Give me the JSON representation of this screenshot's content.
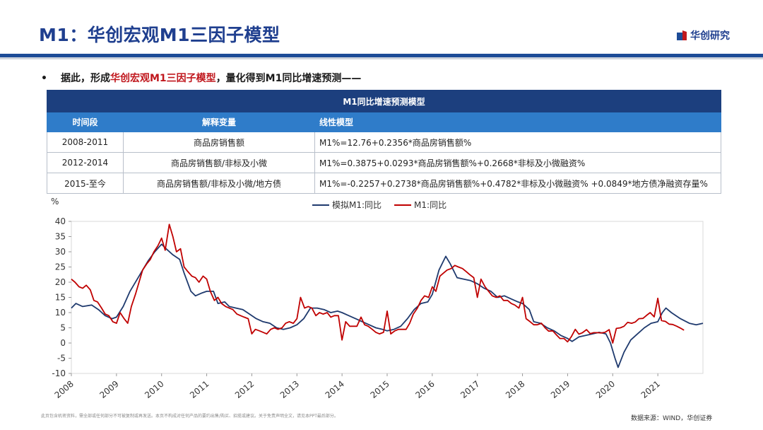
{
  "header": {
    "title": "M1：华创宏观M1三因子模型",
    "brand": "华创研究"
  },
  "bullet": {
    "pre": "据此，形成",
    "highlight": "华创宏观M1三因子模型",
    "post": "，量化得到M1同比增速预测——"
  },
  "table": {
    "caption": "M1同比增速预测模型",
    "headers": [
      "时间段",
      "解释变量",
      "线性模型"
    ],
    "rows": [
      [
        "2008-2011",
        "商品房销售额",
        "M1%=12.76+0.2356*商品房销售额%"
      ],
      [
        "2012-2014",
        "商品房销售额/非标及小微",
        "M1%=0.3875+0.0293*商品房销售额%+0.2668*非标及小微融资%"
      ],
      [
        "2015-至今",
        "商品房销售额/非标及小微/地方债",
        "M1%=-0.2257+0.2738*商品房销售额%+0.4782*非标及小微融资% +0.0849*地方债净融资存量%"
      ]
    ]
  },
  "chart_data": {
    "type": "line",
    "ylabel": "%",
    "ylim": [
      -10,
      40
    ],
    "yticks": [
      -10,
      -5,
      0,
      5,
      10,
      15,
      20,
      25,
      30,
      35,
      40
    ],
    "xlim": [
      2008.0,
      2022.0
    ],
    "xticks": [
      "2008",
      "2009",
      "2010",
      "2011",
      "2012",
      "2013",
      "2014",
      "2015",
      "2016",
      "2017",
      "2018",
      "2019",
      "2020",
      "2021"
    ],
    "grid": false,
    "legend_position": "top-center",
    "series": [
      {
        "name": "模拟M1:同比",
        "color": "#1f3a6e",
        "points": [
          [
            2008.0,
            11.5
          ],
          [
            2008.1,
            13.0
          ],
          [
            2008.25,
            12.0
          ],
          [
            2008.45,
            12.5
          ],
          [
            2008.6,
            11.0
          ],
          [
            2008.75,
            9.0
          ],
          [
            2008.9,
            8.0
          ],
          [
            2009.0,
            8.5
          ],
          [
            2009.15,
            12.0
          ],
          [
            2009.3,
            17.0
          ],
          [
            2009.5,
            22.0
          ],
          [
            2009.7,
            27.0
          ],
          [
            2009.85,
            30.0
          ],
          [
            2010.0,
            32.5
          ],
          [
            2010.1,
            31.0
          ],
          [
            2010.25,
            29.0
          ],
          [
            2010.4,
            27.5
          ],
          [
            2010.5,
            23.0
          ],
          [
            2010.65,
            17.0
          ],
          [
            2010.75,
            15.5
          ],
          [
            2010.9,
            16.5
          ],
          [
            2011.0,
            17.0
          ],
          [
            2011.15,
            17.0
          ],
          [
            2011.25,
            13.0
          ],
          [
            2011.4,
            13.5
          ],
          [
            2011.5,
            12.0
          ],
          [
            2011.65,
            11.5
          ],
          [
            2011.8,
            11.0
          ],
          [
            2011.95,
            9.5
          ],
          [
            2012.1,
            8.0
          ],
          [
            2012.25,
            7.0
          ],
          [
            2012.4,
            6.5
          ],
          [
            2012.55,
            5.0
          ],
          [
            2012.7,
            4.5
          ],
          [
            2012.85,
            5.0
          ],
          [
            2013.0,
            6.0
          ],
          [
            2013.15,
            8.0
          ],
          [
            2013.3,
            11.5
          ],
          [
            2013.45,
            11.5
          ],
          [
            2013.6,
            11.0
          ],
          [
            2013.75,
            10.0
          ],
          [
            2013.9,
            10.5
          ],
          [
            2014.0,
            10.0
          ],
          [
            2014.15,
            9.0
          ],
          [
            2014.3,
            8.0
          ],
          [
            2014.45,
            7.0
          ],
          [
            2014.6,
            6.0
          ],
          [
            2014.75,
            5.0
          ],
          [
            2014.9,
            4.5
          ],
          [
            2015.0,
            4.0
          ],
          [
            2015.15,
            4.5
          ],
          [
            2015.3,
            5.5
          ],
          [
            2015.45,
            8.0
          ],
          [
            2015.6,
            11.0
          ],
          [
            2015.75,
            13.0
          ],
          [
            2015.9,
            13.5
          ],
          [
            2016.0,
            16.0
          ],
          [
            2016.15,
            24.0
          ],
          [
            2016.3,
            28.5
          ],
          [
            2016.4,
            26.0
          ],
          [
            2016.55,
            21.5
          ],
          [
            2016.7,
            21.0
          ],
          [
            2016.85,
            20.5
          ],
          [
            2017.0,
            19.5
          ],
          [
            2017.15,
            18.0
          ],
          [
            2017.3,
            17.0
          ],
          [
            2017.45,
            15.0
          ],
          [
            2017.6,
            15.5
          ],
          [
            2017.75,
            14.5
          ],
          [
            2017.9,
            13.5
          ],
          [
            2018.0,
            13.0
          ],
          [
            2018.15,
            11.0
          ],
          [
            2018.25,
            7.0
          ],
          [
            2018.4,
            6.5
          ],
          [
            2018.55,
            5.0
          ],
          [
            2018.7,
            4.0
          ],
          [
            2018.85,
            2.5
          ],
          [
            2019.0,
            1.5
          ],
          [
            2019.1,
            0.5
          ],
          [
            2019.25,
            2.0
          ],
          [
            2019.4,
            2.5
          ],
          [
            2019.55,
            3.0
          ],
          [
            2019.7,
            3.5
          ],
          [
            2019.85,
            3.0
          ],
          [
            2019.95,
            0.0
          ],
          [
            2020.05,
            -5.0
          ],
          [
            2020.12,
            -8.0
          ],
          [
            2020.25,
            -3.0
          ],
          [
            2020.4,
            1.0
          ],
          [
            2020.55,
            3.0
          ],
          [
            2020.7,
            5.0
          ],
          [
            2020.85,
            6.5
          ],
          [
            2021.0,
            7.0
          ],
          [
            2021.1,
            10.0
          ],
          [
            2021.18,
            11.5
          ],
          [
            2021.3,
            10.0
          ],
          [
            2021.5,
            8.0
          ],
          [
            2021.7,
            6.5
          ],
          [
            2021.85,
            6.0
          ],
          [
            2022.0,
            6.5
          ]
        ]
      },
      {
        "name": "M1:同比",
        "color": "#c00000",
        "points": [
          [
            2008.0,
            21.0
          ],
          [
            2008.08,
            20.0
          ],
          [
            2008.17,
            18.5
          ],
          [
            2008.25,
            18.0
          ],
          [
            2008.33,
            19.0
          ],
          [
            2008.42,
            17.5
          ],
          [
            2008.5,
            14.0
          ],
          [
            2008.58,
            13.5
          ],
          [
            2008.67,
            11.5
          ],
          [
            2008.75,
            9.5
          ],
          [
            2008.83,
            9.0
          ],
          [
            2008.92,
            7.0
          ],
          [
            2009.0,
            6.5
          ],
          [
            2009.08,
            10.0
          ],
          [
            2009.17,
            8.0
          ],
          [
            2009.25,
            6.5
          ],
          [
            2009.33,
            12.0
          ],
          [
            2009.42,
            16.0
          ],
          [
            2009.5,
            20.0
          ],
          [
            2009.58,
            24.0
          ],
          [
            2009.67,
            26.0
          ],
          [
            2009.75,
            27.5
          ],
          [
            2009.83,
            30.0
          ],
          [
            2009.92,
            32.0
          ],
          [
            2010.0,
            34.5
          ],
          [
            2010.08,
            30.5
          ],
          [
            2010.17,
            39.0
          ],
          [
            2010.25,
            35.0
          ],
          [
            2010.33,
            30.0
          ],
          [
            2010.42,
            31.0
          ],
          [
            2010.5,
            25.0
          ],
          [
            2010.58,
            23.5
          ],
          [
            2010.67,
            22.0
          ],
          [
            2010.75,
            21.5
          ],
          [
            2010.83,
            20.0
          ],
          [
            2010.92,
            22.0
          ],
          [
            2011.0,
            21.0
          ],
          [
            2011.08,
            17.0
          ],
          [
            2011.17,
            14.0
          ],
          [
            2011.25,
            15.0
          ],
          [
            2011.33,
            13.0
          ],
          [
            2011.42,
            12.0
          ],
          [
            2011.5,
            11.5
          ],
          [
            2011.58,
            11.0
          ],
          [
            2011.67,
            9.5
          ],
          [
            2011.75,
            9.0
          ],
          [
            2011.83,
            8.5
          ],
          [
            2011.92,
            8.0
          ],
          [
            2012.0,
            3.0
          ],
          [
            2012.08,
            4.5
          ],
          [
            2012.17,
            4.0
          ],
          [
            2012.25,
            3.5
          ],
          [
            2012.33,
            3.0
          ],
          [
            2012.42,
            4.5
          ],
          [
            2012.5,
            5.0
          ],
          [
            2012.58,
            4.5
          ],
          [
            2012.67,
            5.0
          ],
          [
            2012.75,
            6.5
          ],
          [
            2012.83,
            7.0
          ],
          [
            2012.92,
            6.5
          ],
          [
            2013.0,
            8.0
          ],
          [
            2013.08,
            15.0
          ],
          [
            2013.17,
            11.5
          ],
          [
            2013.25,
            12.0
          ],
          [
            2013.33,
            11.5
          ],
          [
            2013.42,
            9.0
          ],
          [
            2013.5,
            10.0
          ],
          [
            2013.58,
            9.5
          ],
          [
            2013.67,
            10.0
          ],
          [
            2013.75,
            8.5
          ],
          [
            2013.83,
            9.0
          ],
          [
            2013.92,
            9.0
          ],
          [
            2014.0,
            1.0
          ],
          [
            2014.08,
            7.0
          ],
          [
            2014.17,
            5.5
          ],
          [
            2014.25,
            5.5
          ],
          [
            2014.33,
            5.5
          ],
          [
            2014.42,
            8.5
          ],
          [
            2014.5,
            6.0
          ],
          [
            2014.58,
            5.5
          ],
          [
            2014.67,
            4.5
          ],
          [
            2014.75,
            3.5
          ],
          [
            2014.83,
            3.0
          ],
          [
            2014.92,
            3.5
          ],
          [
            2015.0,
            10.5
          ],
          [
            2015.08,
            3.0
          ],
          [
            2015.17,
            4.0
          ],
          [
            2015.25,
            4.5
          ],
          [
            2015.33,
            4.5
          ],
          [
            2015.42,
            4.5
          ],
          [
            2015.5,
            6.5
          ],
          [
            2015.58,
            9.5
          ],
          [
            2015.67,
            11.5
          ],
          [
            2015.75,
            14.0
          ],
          [
            2015.83,
            15.5
          ],
          [
            2015.92,
            15.0
          ],
          [
            2016.0,
            18.5
          ],
          [
            2016.08,
            17.0
          ],
          [
            2016.17,
            22.0
          ],
          [
            2016.25,
            23.0
          ],
          [
            2016.33,
            24.0
          ],
          [
            2016.42,
            24.5
          ],
          [
            2016.5,
            25.5
          ],
          [
            2016.58,
            25.0
          ],
          [
            2016.67,
            24.5
          ],
          [
            2016.75,
            23.5
          ],
          [
            2016.83,
            22.5
          ],
          [
            2016.92,
            21.5
          ],
          [
            2017.0,
            15.0
          ],
          [
            2017.08,
            21.0
          ],
          [
            2017.17,
            18.5
          ],
          [
            2017.25,
            17.0
          ],
          [
            2017.33,
            15.5
          ],
          [
            2017.42,
            15.0
          ],
          [
            2017.5,
            15.5
          ],
          [
            2017.58,
            14.0
          ],
          [
            2017.67,
            14.0
          ],
          [
            2017.75,
            13.0
          ],
          [
            2017.83,
            12.5
          ],
          [
            2017.92,
            11.5
          ],
          [
            2018.0,
            15.0
          ],
          [
            2018.08,
            8.0
          ],
          [
            2018.17,
            7.0
          ],
          [
            2018.25,
            6.0
          ],
          [
            2018.33,
            6.0
          ],
          [
            2018.42,
            6.5
          ],
          [
            2018.5,
            5.0
          ],
          [
            2018.58,
            3.9
          ],
          [
            2018.67,
            4.0
          ],
          [
            2018.75,
            2.7
          ],
          [
            2018.83,
            1.5
          ],
          [
            2018.92,
            1.5
          ],
          [
            2019.0,
            0.4
          ],
          [
            2019.08,
            2.0
          ],
          [
            2019.17,
            4.5
          ],
          [
            2019.25,
            2.9
          ],
          [
            2019.33,
            3.4
          ],
          [
            2019.42,
            4.4
          ],
          [
            2019.5,
            3.1
          ],
          [
            2019.58,
            3.4
          ],
          [
            2019.67,
            3.4
          ],
          [
            2019.75,
            3.3
          ],
          [
            2019.83,
            3.5
          ],
          [
            2019.92,
            4.4
          ],
          [
            2020.0,
            0.0
          ],
          [
            2020.08,
            4.8
          ],
          [
            2020.17,
            5.0
          ],
          [
            2020.25,
            5.5
          ],
          [
            2020.33,
            6.8
          ],
          [
            2020.42,
            6.5
          ],
          [
            2020.5,
            6.9
          ],
          [
            2020.58,
            8.0
          ],
          [
            2020.67,
            8.1
          ],
          [
            2020.75,
            9.1
          ],
          [
            2020.83,
            10.0
          ],
          [
            2020.92,
            8.6
          ],
          [
            2021.0,
            14.7
          ],
          [
            2021.08,
            7.4
          ],
          [
            2021.17,
            7.1
          ],
          [
            2021.25,
            6.2
          ],
          [
            2021.33,
            6.1
          ],
          [
            2021.42,
            5.5
          ],
          [
            2021.5,
            4.9
          ],
          [
            2021.58,
            4.2
          ]
        ]
      }
    ]
  },
  "footer": {
    "disclaimer": "此页包含机密资料，需全部或任何部分不可被复制或再发送。本页不构成对任何产品的要约出售/购买、招揽或建议。关于免责声明全文，请见本PPT最后部分。",
    "source": "数据来源：WIND，华创证券"
  }
}
